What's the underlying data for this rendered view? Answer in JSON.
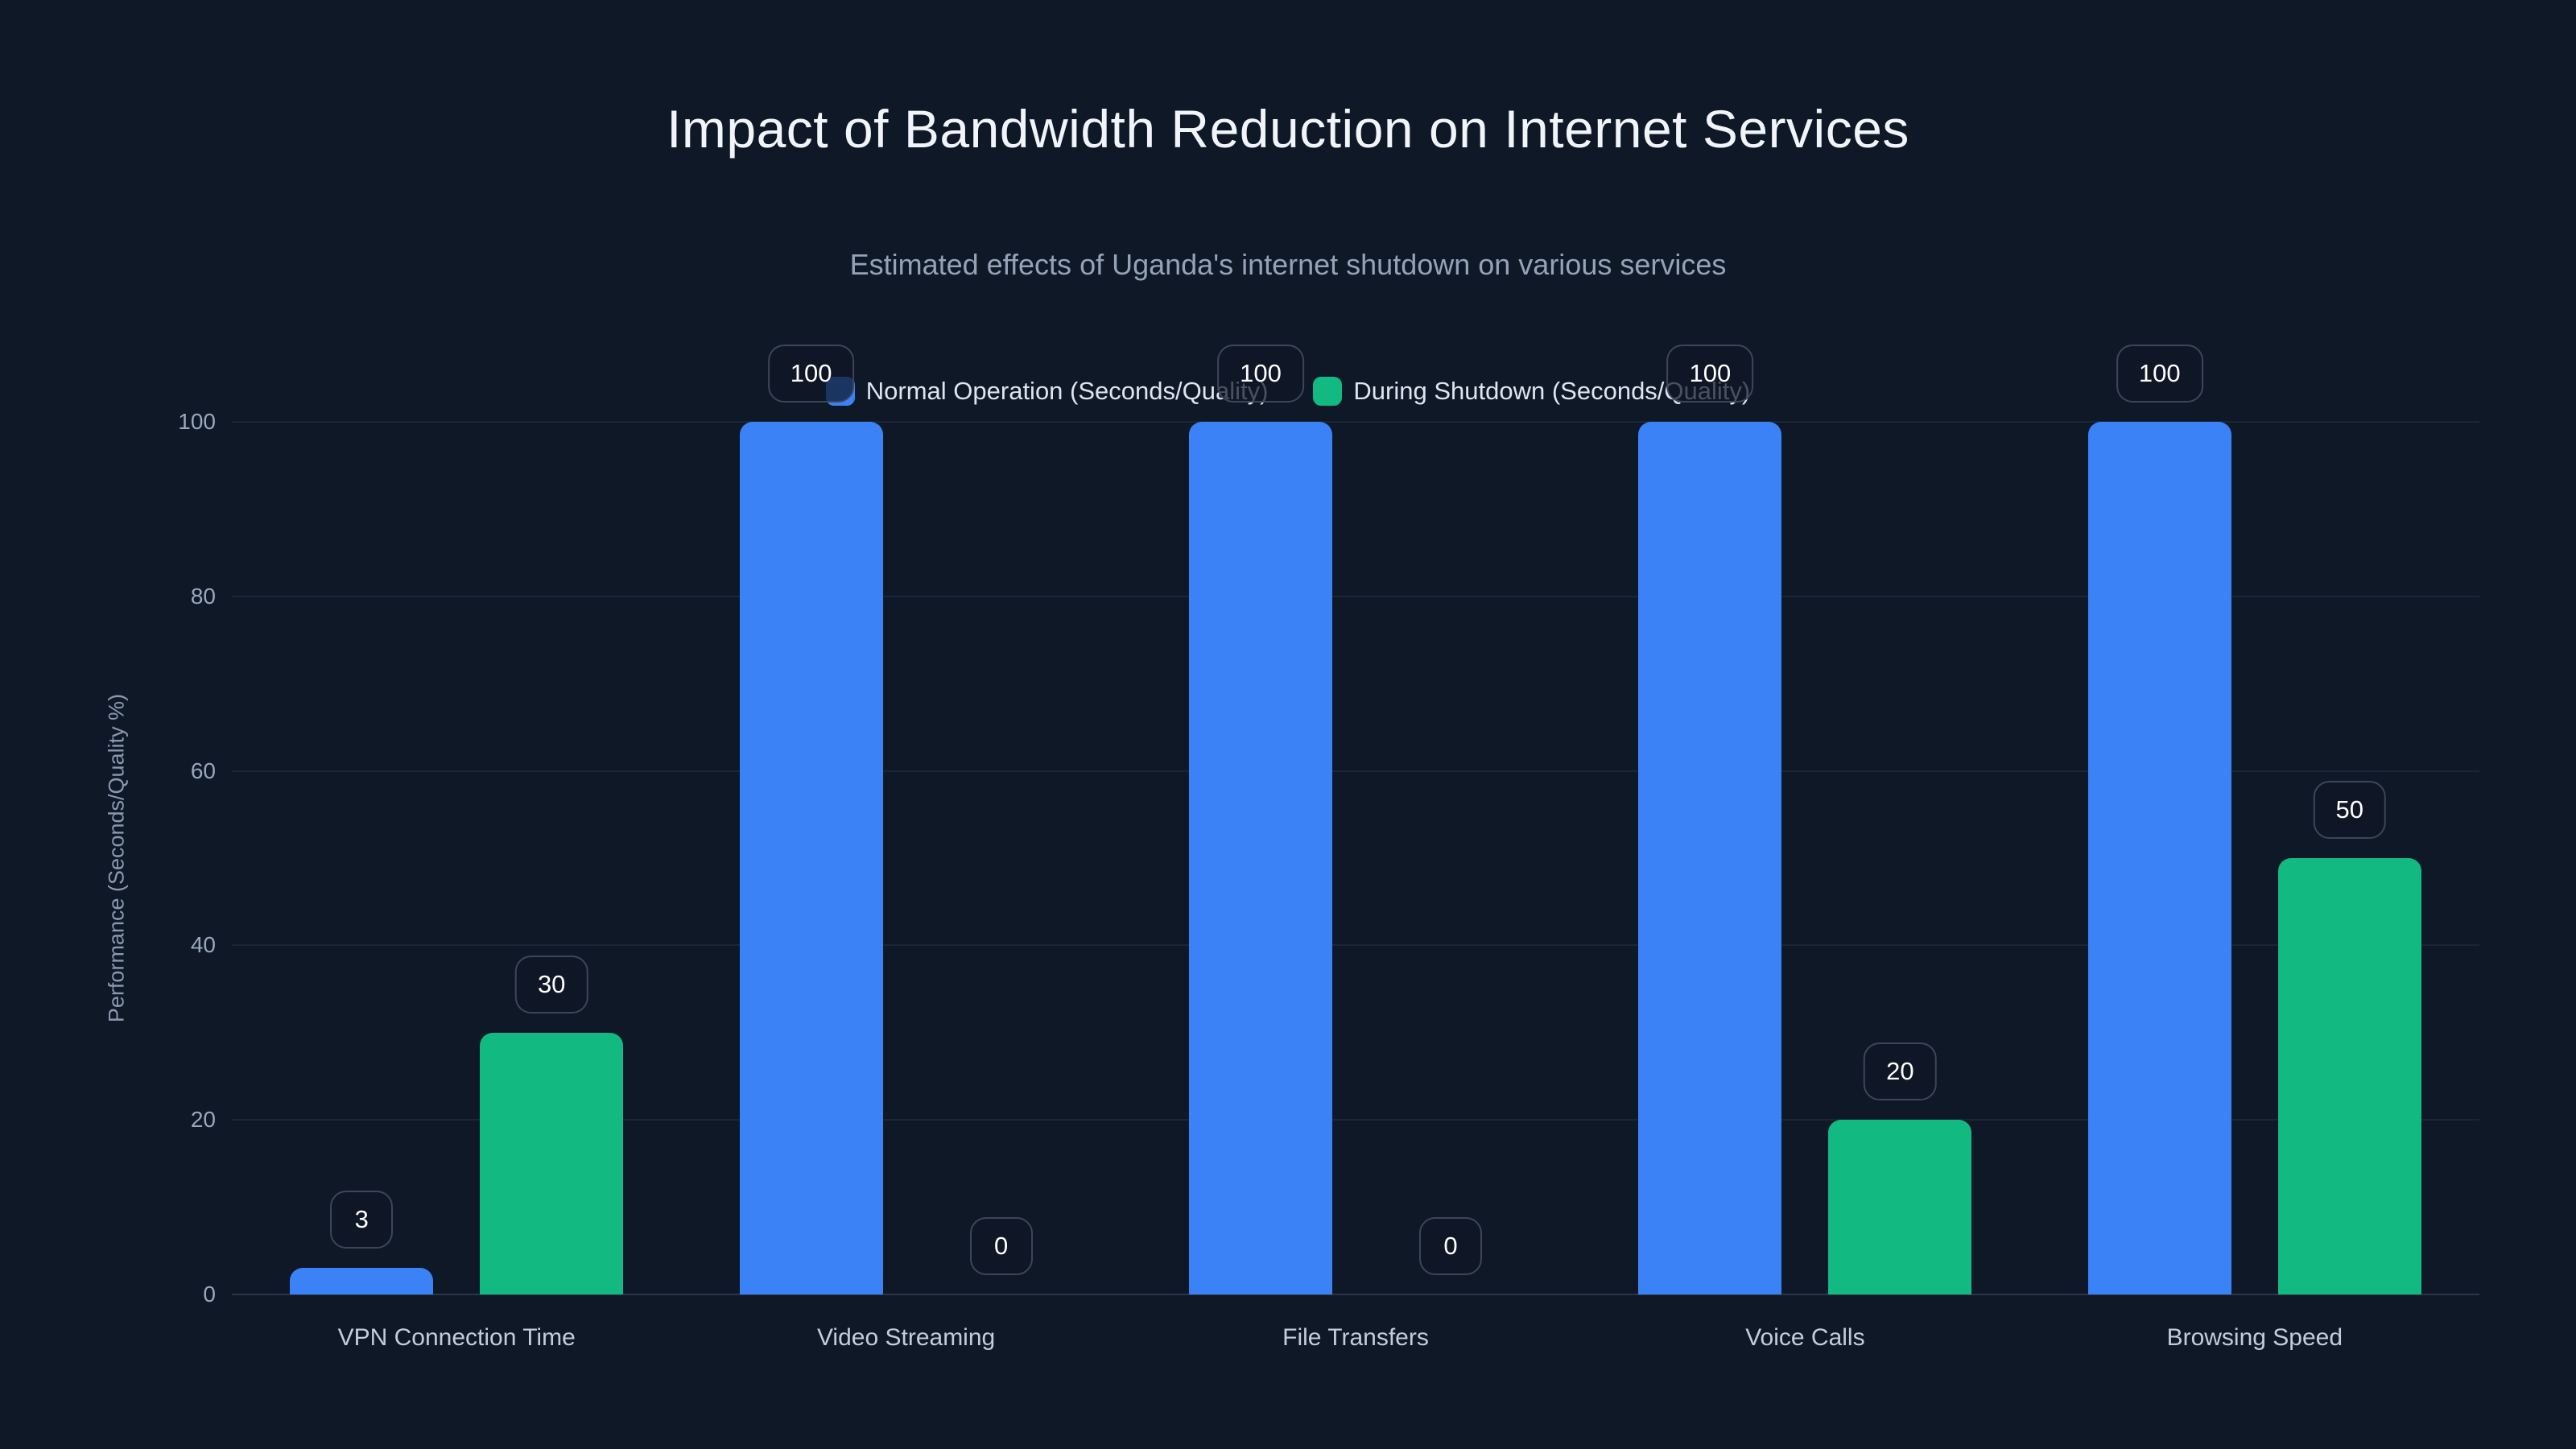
{
  "title": "Impact of Bandwidth Reduction on Internet Services",
  "subtitle": "Estimated effects of Uganda's internet shutdown on various services",
  "colors": {
    "background": "#0f1827",
    "title_text": "#f1f5f9",
    "subtitle_text": "#94a3b8",
    "axis_text": "#9aa8bd",
    "gridline": "#1b2536",
    "baseline": "#2b3648",
    "normal_operation": "#3b82f6",
    "during_shutdown": "#12b981",
    "badge_border": "#3c4658",
    "badge_text": "#ffffff"
  },
  "chart_data": {
    "type": "bar",
    "categories": [
      "VPN Connection Time",
      "Video Streaming",
      "File Transfers",
      "Voice Calls",
      "Browsing Speed"
    ],
    "series": [
      {
        "name": "Normal Operation (Seconds/Quality)",
        "color": "#3b82f6",
        "values": [
          3,
          100,
          100,
          100,
          100
        ]
      },
      {
        "name": "During Shutdown (Seconds/Quality)",
        "color": "#12b981",
        "values": [
          30,
          0,
          0,
          20,
          50
        ]
      }
    ],
    "title": "Impact of Bandwidth Reduction on Internet Services",
    "subtitle": "Estimated effects of Uganda's internet shutdown on various services",
    "xlabel": "",
    "ylabel": "Performance (Seconds/Quality %)",
    "yticks": [
      0,
      20,
      40,
      60,
      80,
      100
    ],
    "ylim": [
      0,
      100
    ],
    "grid": true,
    "legend_position": "top-center",
    "value_labels": "badged above each bar"
  }
}
